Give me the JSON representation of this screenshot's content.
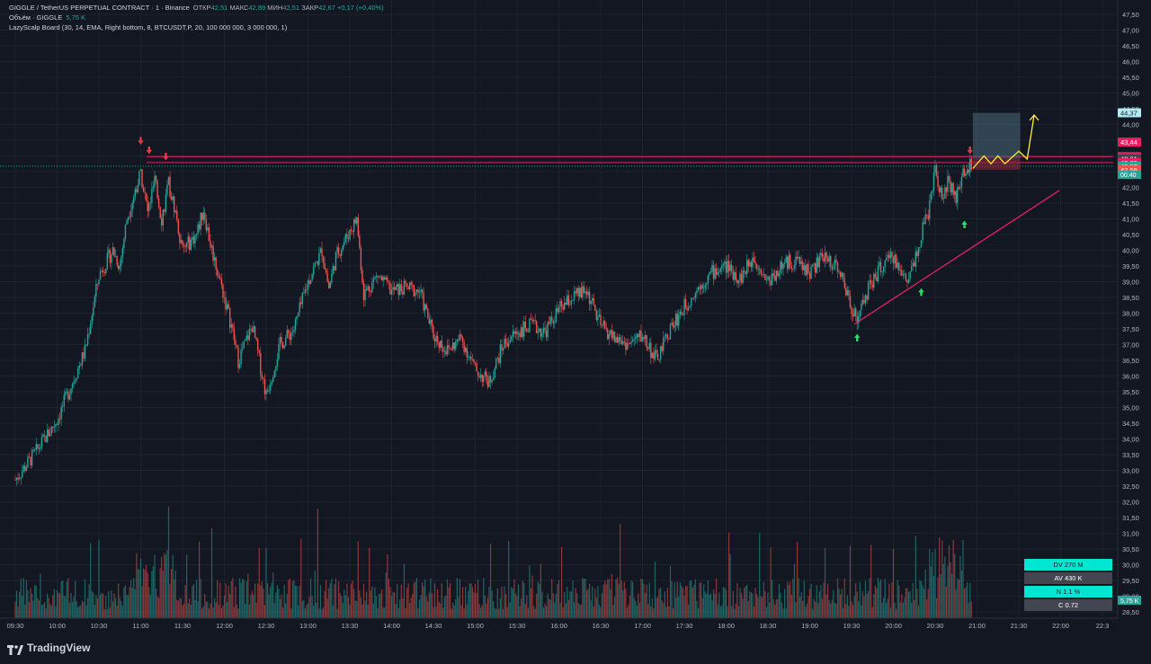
{
  "header": {
    "symbol": "GIGGLE / TetherUS PERPETUAL CONTRACT · 1 · Binance",
    "ohlc": [
      {
        "label": "ОТКР",
        "value": "42,51"
      },
      {
        "label": "МАКС",
        "value": "42,89"
      },
      {
        "label": "МИН",
        "value": "42,51"
      },
      {
        "label": "ЗАКР",
        "value": "42,67"
      }
    ],
    "change": "+0,17 (+0,40%)",
    "volume_label": "Объём · GIGGLE",
    "volume_value": "5,75 K",
    "indicator": "LazyScalp Board (30, 14, EMA, Right bottom, 8, BTCUSDT.P, 20, 100 000 000, 3 000 000, 1)"
  },
  "brand": "TradingView",
  "stats_board": [
    {
      "text": "DV 270 M",
      "bg": "#00e6d2",
      "fg": "#131722"
    },
    {
      "text": "AV 430 K",
      "bg": "#434651",
      "fg": "#ffffff"
    },
    {
      "text": "N 1.1 %",
      "bg": "#00e6d2",
      "fg": "#131722"
    },
    {
      "text": "C  0.72",
      "bg": "#434651",
      "fg": "#ffffff"
    }
  ],
  "colors": {
    "up": "#26a69a",
    "down": "#ef5350",
    "background": "#131722",
    "grid": "#1e222d",
    "level_line": "#e91e63",
    "trendline": "#e91e63",
    "projection": "#ffeb3b"
  },
  "chart_data": {
    "type": "candlestick",
    "title": "GIGGLE / TetherUS PERPETUAL CONTRACT · 1 · Binance",
    "y_axis": {
      "min": 28.3,
      "max": 47.7,
      "ticks": [
        "28,50",
        "29,00",
        "29,50",
        "30,00",
        "30,50",
        "31,00",
        "31,50",
        "32,00",
        "32,50",
        "33,00",
        "33,50",
        "34,00",
        "34,50",
        "35,00",
        "35,50",
        "36,00",
        "36,50",
        "37,00",
        "37,50",
        "38,00",
        "38,50",
        "39,00",
        "39,50",
        "40,00",
        "40,50",
        "41,00",
        "41,50",
        "42,00",
        "42,50",
        "43,00",
        "43,50",
        "44,00",
        "44,50",
        "45,00",
        "45,50",
        "46,00",
        "46,50",
        "47,00",
        "47,50"
      ]
    },
    "x_axis": {
      "ticks": [
        "09:30",
        "10:00",
        "10:30",
        "11:00",
        "11:30",
        "12:00",
        "12:30",
        "13:00",
        "13:30",
        "14:00",
        "14:30",
        "15:00",
        "15:30",
        "16:00",
        "16:30",
        "17:00",
        "17:30",
        "18:00",
        "18:30",
        "19:00",
        "19:30",
        "20:00",
        "20:30",
        "21:00",
        "21:30",
        "22:00",
        "22:3"
      ]
    },
    "price_path": [
      [
        "09:30",
        32.7
      ],
      [
        "09:45",
        33.6
      ],
      [
        "10:00",
        34.6
      ],
      [
        "10:10",
        35.7
      ],
      [
        "10:20",
        36.8
      ],
      [
        "10:30",
        39.2
      ],
      [
        "10:40",
        40.0
      ],
      [
        "10:45",
        39.5
      ],
      [
        "10:50",
        41.0
      ],
      [
        "11:00",
        42.5
      ],
      [
        "11:05",
        41.2
      ],
      [
        "11:10",
        42.2
      ],
      [
        "11:15",
        41.0
      ],
      [
        "11:20",
        42.1
      ],
      [
        "11:25",
        41.2
      ],
      [
        "11:30",
        40.0
      ],
      [
        "11:40",
        40.5
      ],
      [
        "11:45",
        41.3
      ],
      [
        "11:50",
        40.2
      ],
      [
        "12:00",
        38.5
      ],
      [
        "12:05",
        37.6
      ],
      [
        "12:10",
        36.5
      ],
      [
        "12:20",
        37.6
      ],
      [
        "12:30",
        35.4
      ],
      [
        "12:40",
        37.0
      ],
      [
        "12:50",
        37.5
      ],
      [
        "13:00",
        39.0
      ],
      [
        "13:10",
        40.0
      ],
      [
        "13:15",
        38.8
      ],
      [
        "13:20",
        39.8
      ],
      [
        "13:30",
        40.6
      ],
      [
        "13:35",
        41.0
      ],
      [
        "13:40",
        38.6
      ],
      [
        "13:50",
        39.2
      ],
      [
        "14:00",
        38.7
      ],
      [
        "14:10",
        38.8
      ],
      [
        "14:20",
        38.7
      ],
      [
        "14:30",
        37.3
      ],
      [
        "14:40",
        36.8
      ],
      [
        "14:50",
        37.2
      ],
      [
        "15:00",
        36.2
      ],
      [
        "15:10",
        35.8
      ],
      [
        "15:20",
        37.0
      ],
      [
        "15:30",
        37.4
      ],
      [
        "15:40",
        37.6
      ],
      [
        "15:50",
        37.4
      ],
      [
        "16:00",
        38.1
      ],
      [
        "16:10",
        38.5
      ],
      [
        "16:20",
        38.7
      ],
      [
        "16:30",
        37.6
      ],
      [
        "16:40",
        37.2
      ],
      [
        "16:50",
        37.0
      ],
      [
        "17:00",
        37.3
      ],
      [
        "17:10",
        36.5
      ],
      [
        "17:20",
        37.5
      ],
      [
        "17:30",
        38.2
      ],
      [
        "17:40",
        38.8
      ],
      [
        "17:50",
        39.3
      ],
      [
        "18:00",
        39.5
      ],
      [
        "18:10",
        39.1
      ],
      [
        "18:20",
        39.8
      ],
      [
        "18:30",
        39.0
      ],
      [
        "18:40",
        39.5
      ],
      [
        "18:50",
        39.7
      ],
      [
        "19:00",
        39.3
      ],
      [
        "19:10",
        39.8
      ],
      [
        "19:20",
        39.5
      ],
      [
        "19:30",
        38.2
      ],
      [
        "19:35",
        37.8
      ],
      [
        "19:40",
        38.6
      ],
      [
        "19:50",
        39.4
      ],
      [
        "20:00",
        39.8
      ],
      [
        "20:05",
        39.3
      ],
      [
        "20:10",
        39.1
      ],
      [
        "20:15",
        39.7
      ],
      [
        "20:20",
        40.5
      ],
      [
        "20:25",
        41.2
      ],
      [
        "20:30",
        42.5
      ],
      [
        "20:35",
        41.8
      ],
      [
        "20:40",
        42.2
      ],
      [
        "20:45",
        41.6
      ],
      [
        "20:50",
        42.4
      ],
      [
        "20:55",
        42.67
      ]
    ],
    "volume_axis_label": "5,75 K",
    "horizontal_levels": [
      {
        "price": 42.98,
        "label": "42,98",
        "color": "#e91e63"
      },
      {
        "price": 42.79,
        "label": "42,79",
        "color": "#e91e63"
      },
      {
        "price": 42.67,
        "label": "42,67",
        "color": "#26a69a",
        "note": "00:40"
      }
    ],
    "price_labels": [
      {
        "price": 44.37,
        "label": "44,37",
        "bg": "#b2ebf2",
        "fg": "#131722"
      },
      {
        "price": 43.44,
        "label": "43,44",
        "bg": "#e91e63",
        "fg": "#ffffff"
      },
      {
        "price": 42.98,
        "label": "42,98",
        "bg": "#e91e63",
        "fg": "#ffffff"
      },
      {
        "price": 42.91,
        "label": "42,91",
        "bg": "#434651",
        "fg": "#ffffff"
      },
      {
        "price": 42.79,
        "label": "42,79",
        "bg": "#e91e63",
        "fg": "#ffffff"
      },
      {
        "price": 42.67,
        "label": "42,67",
        "bg": "#26a69a",
        "fg": "#ffffff"
      },
      {
        "price": 42.56,
        "label": "42,56",
        "bg": "#ef5350",
        "fg": "#ffffff"
      }
    ],
    "countdown": "00:40",
    "position_box": {
      "target": 44.37,
      "entry": 42.91,
      "stop": 42.56
    },
    "trendline": {
      "from": [
        "19:32",
        37.65
      ],
      "to": [
        "21:59",
        41.9
      ]
    },
    "arrows_down": [
      [
        "11:00",
        43.4
      ],
      [
        "11:06",
        43.1
      ],
      [
        "11:18",
        42.9
      ],
      [
        "20:55",
        43.1
      ]
    ],
    "arrows_up": [
      [
        "19:34",
        37.3
      ],
      [
        "20:20",
        38.75
      ],
      [
        "20:51",
        40.9
      ]
    ],
    "projection_path": [
      [
        "20:57",
        42.6
      ],
      [
        "21:05",
        43.0
      ],
      [
        "21:10",
        42.75
      ],
      [
        "21:15",
        43.0
      ],
      [
        "21:20",
        42.75
      ],
      [
        "21:30",
        43.15
      ],
      [
        "21:36",
        42.9
      ],
      [
        "21:41",
        44.3
      ]
    ],
    "grid": true
  }
}
